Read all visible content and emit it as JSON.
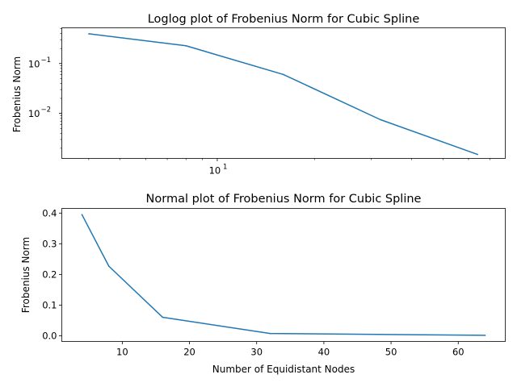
{
  "chart_data": [
    {
      "type": "line",
      "title": "Loglog plot of Frobenius Norm for Cubic Spline",
      "xlabel": "",
      "ylabel": "Frobenius Norm",
      "xscale": "log",
      "yscale": "log",
      "xlim": [
        3.3,
        78
      ],
      "ylim": [
        0.00125,
        0.52
      ],
      "x_major_ticks": [
        {
          "value": 10,
          "base": "10",
          "exp": "1"
        }
      ],
      "y_major_ticks": [
        {
          "value": 0.1,
          "base": "10",
          "exp": "−1"
        },
        {
          "value": 0.01,
          "base": "10",
          "exp": "−2"
        }
      ],
      "color": "#1f77b4",
      "series": [
        {
          "x": [
            4,
            8,
            16,
            32,
            64
          ],
          "y": [
            0.395,
            0.227,
            0.0605,
            0.0075,
            0.0015
          ]
        }
      ]
    },
    {
      "type": "line",
      "title": "Normal plot of Frobenius Norm for Cubic Spline",
      "xlabel": "Number of Equidistant Nodes",
      "ylabel": "Frobenius Norm",
      "xscale": "linear",
      "yscale": "linear",
      "xlim": [
        1,
        67
      ],
      "ylim": [
        -0.0184,
        0.4152
      ],
      "x_ticks": [
        10,
        20,
        30,
        40,
        50,
        60
      ],
      "y_ticks": [
        0.0,
        0.1,
        0.2,
        0.3,
        0.4
      ],
      "color": "#1f77b4",
      "series": [
        {
          "x": [
            4,
            8,
            16,
            32,
            64
          ],
          "y": [
            0.395,
            0.227,
            0.0605,
            0.0075,
            0.0015
          ]
        }
      ]
    }
  ]
}
